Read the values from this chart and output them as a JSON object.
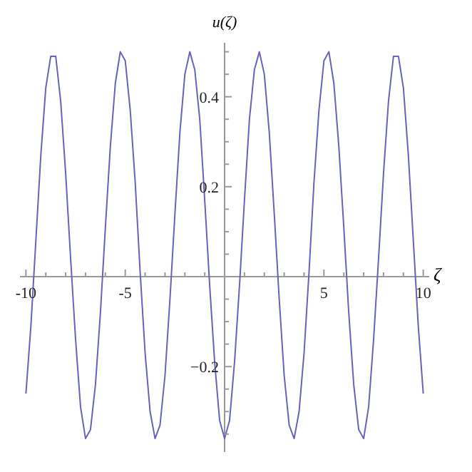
{
  "chart_data": {
    "type": "line",
    "xlabel": "ζ",
    "ylabel": "u(ζ)",
    "grid": false,
    "legend": false,
    "marker": "none",
    "line_style": "solid",
    "xlim": [
      -10.3,
      10.3
    ],
    "ylim": [
      -0.39,
      0.52
    ],
    "xticks": [
      -10,
      {
        "value": -9,
        "label": null
      },
      {
        "value": -8,
        "label": null
      },
      {
        "value": -7,
        "label": null
      },
      {
        "value": -6,
        "label": null
      },
      -5,
      {
        "value": -4,
        "label": null
      },
      {
        "value": -3,
        "label": null
      },
      {
        "value": -2,
        "label": null
      },
      {
        "value": -1,
        "label": null
      },
      {
        "value": 1,
        "label": null
      },
      {
        "value": 2,
        "label": null
      },
      {
        "value": 3,
        "label": null
      },
      {
        "value": 4,
        "label": null
      },
      5,
      {
        "value": 6,
        "label": null
      },
      {
        "value": 7,
        "label": null
      },
      {
        "value": 8,
        "label": null
      },
      {
        "value": 9,
        "label": null
      },
      10
    ],
    "yticks": [
      {
        "value": -0.35,
        "label": null
      },
      {
        "value": -0.3,
        "label": null
      },
      {
        "value": -0.25,
        "label": null
      },
      {
        "value": -0.2,
        "label": "−0.2"
      },
      {
        "value": -0.15,
        "label": null
      },
      {
        "value": -0.1,
        "label": null
      },
      {
        "value": -0.05,
        "label": null
      },
      {
        "value": 0.05,
        "label": null
      },
      {
        "value": 0.1,
        "label": null
      },
      {
        "value": 0.15,
        "label": null
      },
      0.2,
      {
        "value": 0.25,
        "label": null
      },
      {
        "value": 0.3,
        "label": null
      },
      {
        "value": 0.35,
        "label": null
      },
      0.4,
      {
        "value": 0.45,
        "label": null
      },
      {
        "value": 0.5,
        "label": null
      }
    ],
    "x": [
      -10,
      -9.75,
      -9.5,
      -9.25,
      -9,
      -8.75,
      -8.5,
      -8.25,
      -8,
      -7.75,
      -7.5,
      -7.25,
      -7,
      -6.75,
      -6.5,
      -6.25,
      -6,
      -5.75,
      -5.5,
      -5.25,
      -5,
      -4.75,
      -4.5,
      -4.25,
      -4,
      -3.75,
      -3.5,
      -3.25,
      -3,
      -2.75,
      -2.5,
      -2.25,
      -2,
      -1.75,
      -1.5,
      -1.25,
      -1,
      -0.75,
      -0.5,
      -0.25,
      0,
      0.25,
      0.5,
      0.75,
      1,
      1.25,
      1.5,
      1.75,
      2,
      2.25,
      2.5,
      2.75,
      3,
      3.25,
      3.5,
      3.75,
      4,
      4.25,
      4.5,
      4.75,
      5,
      5.25,
      5.5,
      5.75,
      6,
      6.25,
      6.5,
      6.75,
      7,
      7.25,
      7.5,
      7.75,
      8,
      8.25,
      8.5,
      8.75,
      9,
      9.25,
      9.5,
      9.75,
      10
    ],
    "series": [
      {
        "color": "#6464b8",
        "values": [
          -0.26,
          -0.11,
          0.08,
          0.27,
          0.42,
          0.49,
          0.49,
          0.39,
          0.23,
          0.04,
          -0.14,
          -0.29,
          -0.36,
          -0.34,
          -0.24,
          -0.08,
          0.11,
          0.29,
          0.43,
          0.5,
          0.48,
          0.37,
          0.21,
          0.01,
          -0.17,
          -0.3,
          -0.36,
          -0.33,
          -0.22,
          -0.05,
          0.14,
          0.32,
          0.45,
          0.5,
          0.46,
          0.35,
          0.17,
          -0.02,
          -0.19,
          -0.32,
          -0.36,
          -0.32,
          -0.19,
          -0.02,
          0.17,
          0.35,
          0.46,
          0.5,
          0.45,
          0.32,
          0.14,
          -0.05,
          -0.22,
          -0.33,
          -0.36,
          -0.3,
          -0.17,
          0.01,
          0.21,
          0.37,
          0.48,
          0.5,
          0.43,
          0.29,
          0.11,
          -0.08,
          -0.24,
          -0.34,
          -0.36,
          -0.29,
          -0.14,
          0.04,
          0.23,
          0.39,
          0.49,
          0.49,
          0.42,
          0.27,
          0.08,
          -0.11,
          -0.26
        ]
      }
    ]
  }
}
